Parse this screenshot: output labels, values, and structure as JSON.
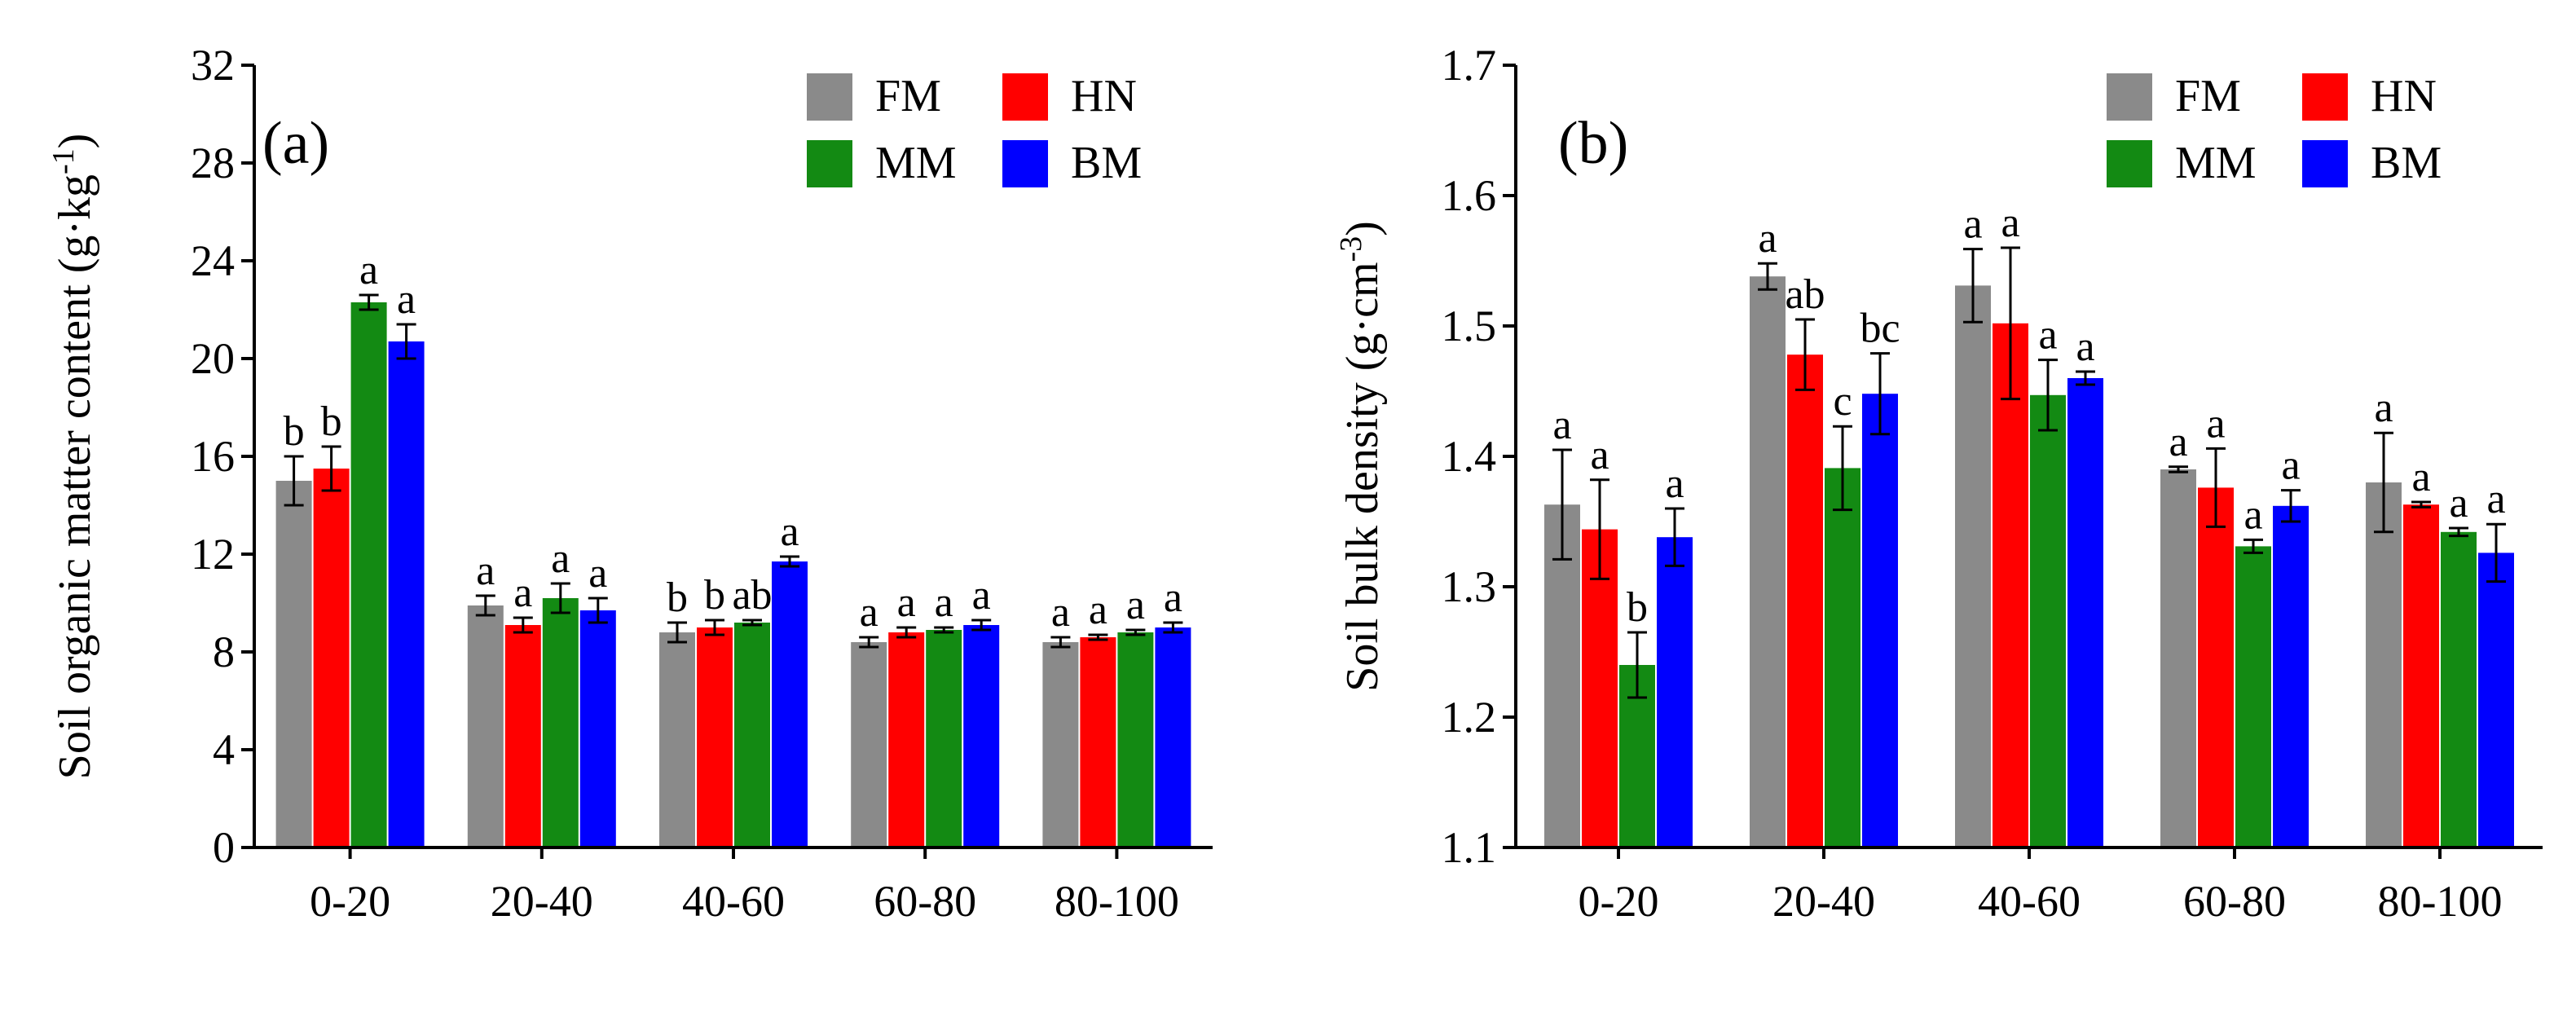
{
  "legend": [
    {
      "key": "FM",
      "label": "FM",
      "color": "#8a8a8a"
    },
    {
      "key": "HN",
      "label": "HN",
      "color": "#ff0000"
    },
    {
      "key": "MM",
      "label": "MM",
      "color": "#138a13"
    },
    {
      "key": "BM",
      "label": "BM",
      "color": "#0000ff"
    }
  ],
  "chart_data": [
    {
      "type": "bar",
      "panel_label": "(a)",
      "ylabel": "Soil organic matter content (g·kg",
      "ylabel_sup": "-1",
      "ylabel_end": ")",
      "ylim": [
        0,
        32
      ],
      "yticks": [
        "0",
        "4",
        "8",
        "12",
        "16",
        "20",
        "24",
        "28",
        "32"
      ],
      "categories": [
        "0-20",
        "20-40",
        "40-60",
        "60-80",
        "80-100"
      ],
      "legend_position": "top-right",
      "series": [
        {
          "name": "FM",
          "values": [
            15.0,
            9.9,
            8.8,
            8.4,
            8.4
          ],
          "errors": [
            1.0,
            0.4,
            0.4,
            0.2,
            0.2
          ],
          "labels": [
            "b",
            "a",
            "b",
            "a",
            "a"
          ]
        },
        {
          "name": "HN",
          "values": [
            15.5,
            9.1,
            9.0,
            8.8,
            8.6
          ],
          "errors": [
            0.9,
            0.3,
            0.3,
            0.2,
            0.1
          ],
          "labels": [
            "b",
            "a",
            "b",
            "a",
            "a"
          ]
        },
        {
          "name": "MM",
          "values": [
            22.3,
            10.2,
            9.2,
            8.9,
            8.8
          ],
          "errors": [
            0.3,
            0.6,
            0.1,
            0.1,
            0.1
          ],
          "labels": [
            "a",
            "a",
            "ab",
            "a",
            "a"
          ]
        },
        {
          "name": "BM",
          "values": [
            20.7,
            9.7,
            11.7,
            9.1,
            9.0
          ],
          "errors": [
            0.7,
            0.5,
            0.2,
            0.2,
            0.2
          ],
          "labels": [
            "a",
            "a",
            "a",
            "a",
            "a"
          ]
        }
      ]
    },
    {
      "type": "bar",
      "panel_label": "(b)",
      "ylabel": "Soil bulk density (g·cm",
      "ylabel_sup": "-3",
      "ylabel_end": ")",
      "ylim": [
        1.1,
        1.7
      ],
      "yticks": [
        "1.1",
        "1.2",
        "1.3",
        "1.4",
        "1.5",
        "1.6",
        "1.7"
      ],
      "categories": [
        "0-20",
        "20-40",
        "40-60",
        "60-80",
        "80-100"
      ],
      "legend_position": "top-right",
      "series": [
        {
          "name": "FM",
          "values": [
            1.363,
            1.538,
            1.531,
            1.39,
            1.38
          ],
          "errors": [
            0.042,
            0.01,
            0.028,
            0.002,
            0.038
          ],
          "labels": [
            "a",
            "a",
            "a",
            "a",
            "a"
          ]
        },
        {
          "name": "HN",
          "values": [
            1.344,
            1.478,
            1.502,
            1.376,
            1.363
          ],
          "errors": [
            0.038,
            0.027,
            0.058,
            0.03,
            0.002
          ],
          "labels": [
            "a",
            "ab",
            "a",
            "a",
            "a"
          ]
        },
        {
          "name": "MM",
          "values": [
            1.24,
            1.391,
            1.447,
            1.331,
            1.342
          ],
          "errors": [
            0.025,
            0.032,
            0.027,
            0.005,
            0.003
          ],
          "labels": [
            "b",
            "c",
            "a",
            "a",
            "a"
          ]
        },
        {
          "name": "BM",
          "values": [
            1.338,
            1.448,
            1.46,
            1.362,
            1.326
          ],
          "errors": [
            0.022,
            0.031,
            0.005,
            0.012,
            0.022
          ],
          "labels": [
            "a",
            "bc",
            "a",
            "a",
            "a"
          ]
        }
      ]
    }
  ]
}
